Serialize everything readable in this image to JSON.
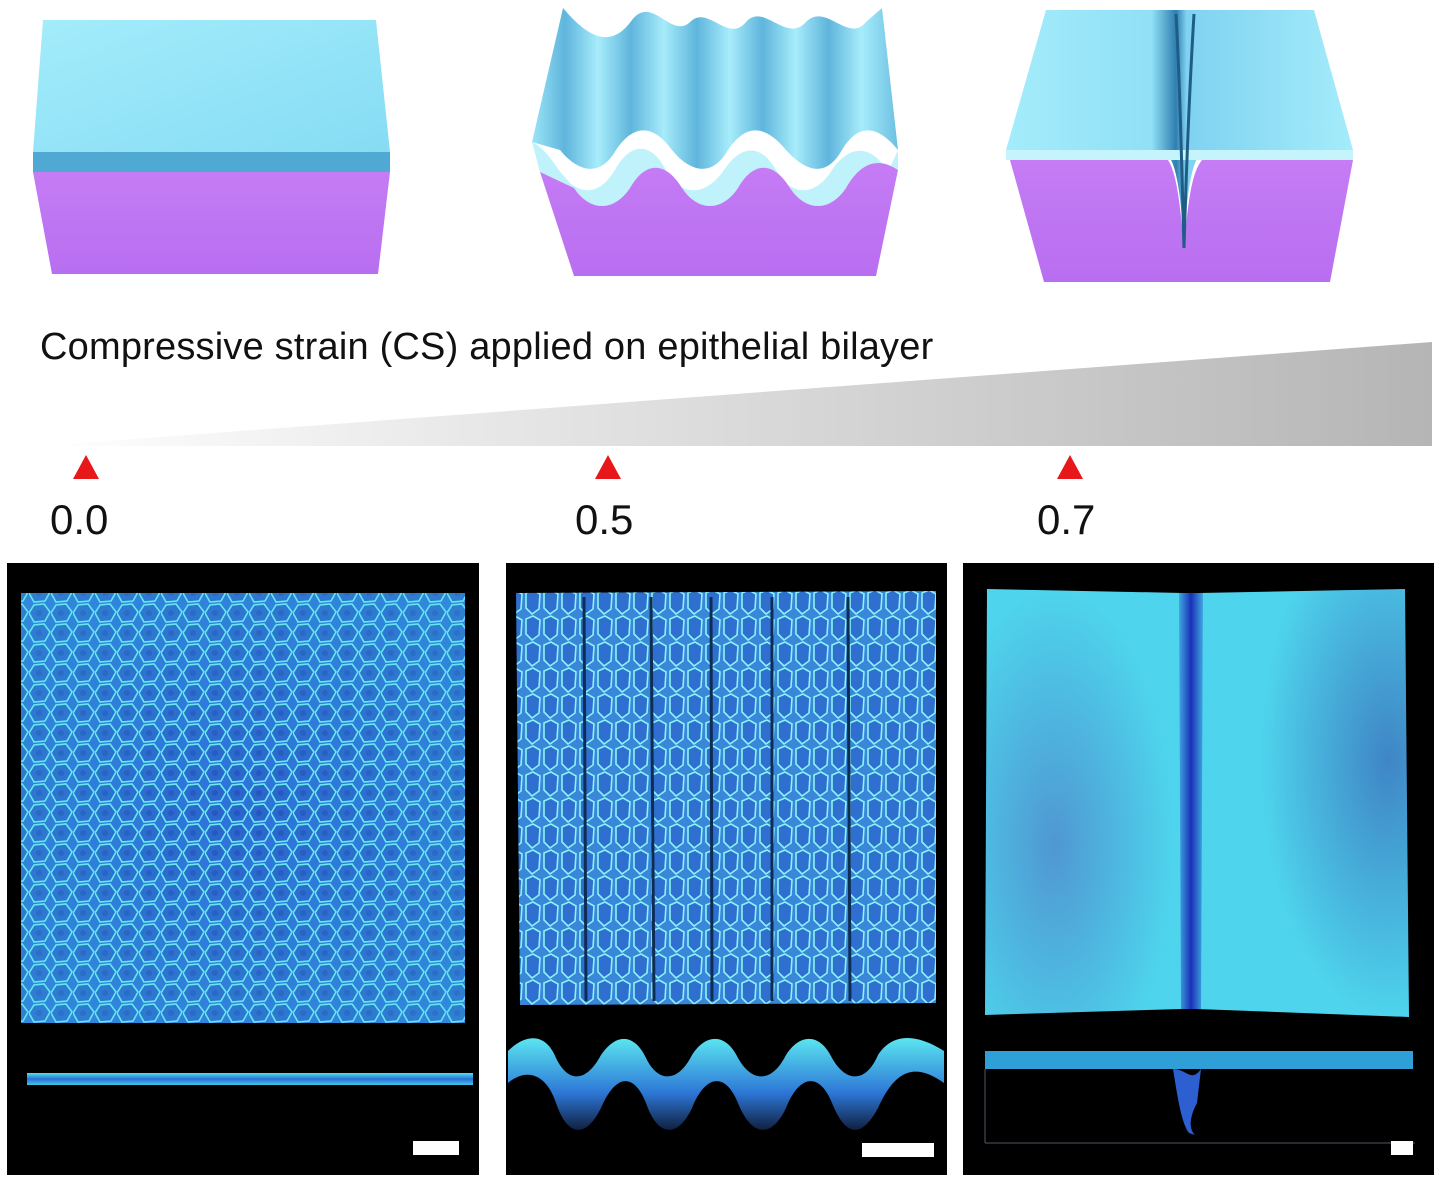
{
  "figure": {
    "strain_label": "Compressive strain (CS) applied on epithelial bilayer",
    "marker_color": "#e8171a",
    "stages": [
      {
        "value": "0.0",
        "state": "flat-bilayer"
      },
      {
        "value": "0.5",
        "state": "wrinkled-bilayer"
      },
      {
        "value": "0.7",
        "state": "folded-bilayer"
      }
    ],
    "colors": {
      "top_layer": "#8fe0f5",
      "top_layer_side": "#4aa8d0",
      "substrate": "#c77bf2",
      "substrate_side": "#b063e6",
      "wedge_light": "#ffffff",
      "wedge_dark": "#b9b9b9",
      "microscopy_cyan": "#3fd8e6",
      "microscopy_blue": "#1c3ac8",
      "panel_bg": "#000000"
    }
  }
}
